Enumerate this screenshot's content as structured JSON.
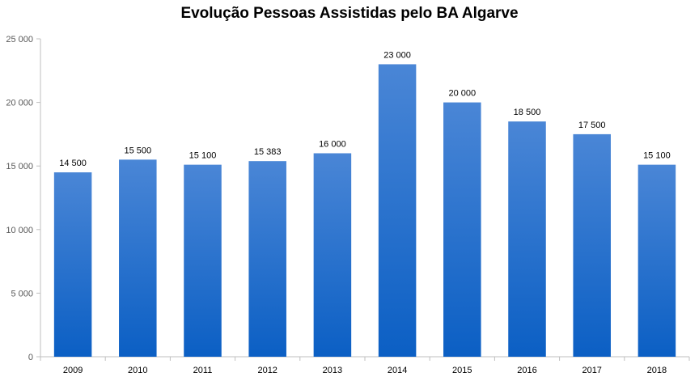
{
  "chart_data": {
    "type": "bar",
    "title": "Evolução Pessoas Assistidas pelo BA Algarve",
    "categories": [
      "2009",
      "2010",
      "2011",
      "2012",
      "2013",
      "2014",
      "2015",
      "2016",
      "2017",
      "2018"
    ],
    "values": [
      14500,
      15500,
      15100,
      15383,
      16000,
      23000,
      20000,
      18500,
      17500,
      15100
    ],
    "data_labels": [
      "14 500",
      "15 500",
      "15 100",
      "15 383",
      "16 000",
      "23 000",
      "20 000",
      "18 500",
      "17 500",
      "15 100"
    ],
    "ylim": [
      0,
      25000
    ],
    "yticks": [
      0,
      5000,
      10000,
      15000,
      20000,
      25000
    ],
    "ytick_labels": [
      "0",
      "5 000",
      "10 000",
      "15 000",
      "20 000",
      "25 000"
    ],
    "xlabel": "",
    "ylabel": "",
    "grid": false,
    "legend": "none",
    "colors": {
      "bar_top": "#4a86d6",
      "bar_bottom": "#0b5fc4",
      "axis": "#bfbfbf"
    }
  }
}
